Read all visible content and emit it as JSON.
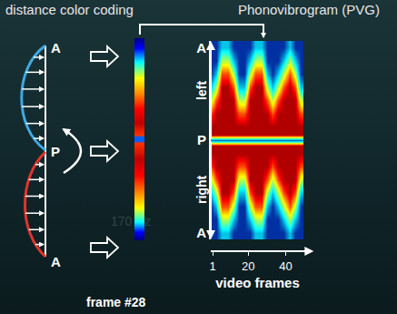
{
  "headers": {
    "left": "distance color coding"
  },
  "fold_diagram": {
    "labels": {
      "top": "A",
      "middle": "P",
      "bottom": "A"
    },
    "caption": "frame #28"
  },
  "background_text": "170 Hz",
  "chart_data": {
    "type": "heatmap",
    "title": "Phonovibrogram (PVG)",
    "x_label": "video frames",
    "side_labels": {
      "upper": "left",
      "lower": "right"
    },
    "x": [
      0,
      3,
      6,
      9,
      12,
      15,
      18,
      21,
      24,
      27,
      30,
      33,
      36,
      39,
      42,
      45,
      48
    ],
    "y": [
      -7,
      -6,
      -5,
      -4,
      -3,
      -2,
      -1,
      -0.4,
      0,
      0.4,
      1,
      2,
      3,
      4,
      5,
      6,
      7
    ],
    "cells": [
      [
        0.1,
        0.1,
        0.3,
        0.3,
        0.1,
        0.1,
        0.1,
        0.1,
        0.3,
        0.3,
        0.1,
        0.1,
        0.1,
        0.1,
        0.3,
        0.1,
        0.1
      ],
      [
        0.1,
        0.1,
        0.55,
        0.55,
        0.3,
        0.1,
        0.1,
        0.3,
        0.55,
        0.55,
        0.1,
        0.1,
        0.1,
        0.3,
        0.55,
        0.3,
        0.1
      ],
      [
        0.1,
        0.3,
        0.8,
        0.8,
        0.55,
        0.1,
        0.1,
        0.55,
        0.8,
        0.8,
        0.3,
        0.1,
        0.3,
        0.55,
        0.8,
        0.55,
        0.1
      ],
      [
        0.3,
        0.55,
        0.95,
        0.95,
        0.8,
        0.3,
        0.3,
        0.8,
        0.95,
        0.95,
        0.55,
        0.3,
        0.55,
        0.8,
        0.95,
        0.8,
        0.3
      ],
      [
        0.55,
        0.8,
        0.95,
        0.95,
        0.95,
        0.55,
        0.55,
        0.95,
        0.95,
        0.95,
        0.8,
        0.55,
        0.8,
        0.95,
        0.95,
        0.95,
        0.55
      ],
      [
        0.8,
        0.95,
        0.95,
        0.95,
        0.95,
        0.8,
        0.8,
        0.95,
        0.95,
        0.95,
        0.95,
        0.8,
        0.95,
        0.95,
        0.95,
        0.95,
        0.8
      ],
      [
        0.95,
        0.95,
        0.95,
        0.95,
        0.95,
        0.95,
        0.95,
        0.95,
        0.95,
        0.95,
        0.95,
        0.95,
        0.95,
        0.95,
        0.95,
        0.95,
        0.95
      ],
      [
        0.95,
        0.95,
        0.95,
        0.95,
        0.95,
        0.95,
        0.95,
        0.95,
        0.95,
        0.95,
        0.95,
        0.95,
        0.95,
        0.95,
        0.95,
        0.95,
        0.95
      ],
      [
        0.2,
        0.2,
        0.2,
        0.2,
        0.2,
        0.2,
        0.2,
        0.2,
        0.2,
        0.2,
        0.2,
        0.2,
        0.2,
        0.2,
        0.2,
        0.2,
        0.2
      ],
      [
        0.95,
        0.95,
        0.95,
        0.95,
        0.95,
        0.95,
        0.95,
        0.95,
        0.95,
        0.95,
        0.95,
        0.95,
        0.95,
        0.95,
        0.95,
        0.95,
        0.95
      ],
      [
        0.95,
        0.95,
        0.95,
        0.95,
        0.95,
        0.95,
        0.95,
        0.95,
        0.95,
        0.95,
        0.95,
        0.95,
        0.95,
        0.95,
        0.95,
        0.95,
        0.95
      ],
      [
        0.8,
        0.95,
        0.95,
        0.95,
        0.95,
        0.8,
        0.8,
        0.95,
        0.95,
        0.95,
        0.95,
        0.8,
        0.95,
        0.95,
        0.95,
        0.95,
        0.8
      ],
      [
        0.55,
        0.8,
        0.95,
        0.95,
        0.95,
        0.55,
        0.55,
        0.95,
        0.95,
        0.95,
        0.8,
        0.55,
        0.8,
        0.95,
        0.95,
        0.95,
        0.55
      ],
      [
        0.3,
        0.55,
        0.95,
        0.95,
        0.8,
        0.3,
        0.3,
        0.8,
        0.95,
        0.95,
        0.55,
        0.3,
        0.55,
        0.8,
        0.95,
        0.8,
        0.3
      ],
      [
        0.1,
        0.3,
        0.8,
        0.8,
        0.55,
        0.1,
        0.1,
        0.55,
        0.8,
        0.8,
        0.3,
        0.1,
        0.3,
        0.55,
        0.8,
        0.55,
        0.1
      ],
      [
        0.1,
        0.1,
        0.55,
        0.55,
        0.3,
        0.1,
        0.1,
        0.3,
        0.55,
        0.55,
        0.1,
        0.1,
        0.1,
        0.3,
        0.55,
        0.3,
        0.1
      ],
      [
        0.1,
        0.1,
        0.3,
        0.3,
        0.1,
        0.1,
        0.1,
        0.1,
        0.3,
        0.3,
        0.1,
        0.1,
        0.1,
        0.1,
        0.3,
        0.1,
        0.1
      ]
    ],
    "zlim": [
      0,
      1
    ],
    "xlim": [
      0,
      50
    ],
    "xticks": [
      1,
      20,
      40
    ],
    "ylim": [
      -7.5,
      7.5
    ],
    "yticks": [
      {
        "value": 7,
        "label": "A"
      },
      {
        "value": 0,
        "label": "P"
      },
      {
        "value": -7,
        "label": "A"
      }
    ]
  }
}
